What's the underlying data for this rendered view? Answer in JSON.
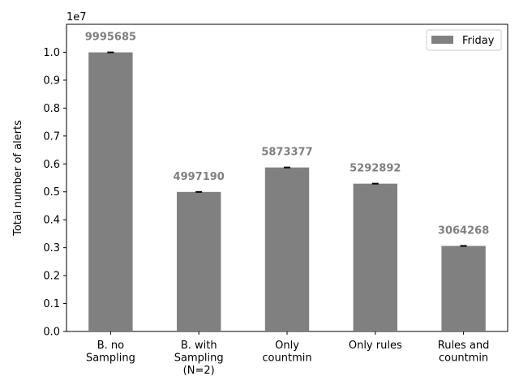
{
  "chart_data": {
    "type": "bar",
    "title": "",
    "xlabel": "",
    "ylabel": "Total number of alerts",
    "y_multiplier": "1e7",
    "ylim": [
      0,
      1.1
    ],
    "yticks": [
      "0.0",
      "0.1",
      "0.2",
      "0.3",
      "0.4",
      "0.5",
      "0.6",
      "0.7",
      "0.8",
      "0.9",
      "1.0"
    ],
    "categories": [
      [
        "B. no",
        "Sampling"
      ],
      [
        "B. with",
        "Sampling",
        "(N=2)"
      ],
      [
        "Only",
        "countmin"
      ],
      [
        "Only rules"
      ],
      [
        "Rules and",
        "countmin"
      ]
    ],
    "series": [
      {
        "name": "Friday",
        "color": "#808080",
        "values": [
          9995685,
          4997190,
          5873377,
          5292892,
          3064268
        ]
      }
    ],
    "value_labels": [
      "9995685",
      "4997190",
      "5873377",
      "5292892",
      "3064268"
    ],
    "grid": false,
    "legend_position": "top-right",
    "error_bars": true
  }
}
